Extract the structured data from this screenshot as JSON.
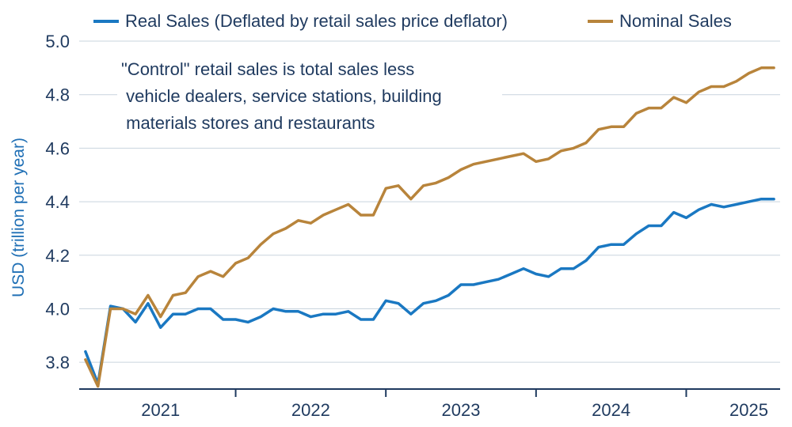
{
  "chart_data": {
    "type": "line",
    "xlabel": "",
    "ylabel": "USD (trillion per year)",
    "ylim": [
      3.7,
      5.0
    ],
    "yticks": [
      3.8,
      4.0,
      4.2,
      4.4,
      4.6,
      4.8,
      5.0
    ],
    "ytick_labels": [
      "3.8",
      "4.0",
      "4.2",
      "4.4",
      "4.6",
      "4.8",
      "5.0"
    ],
    "xlim": [
      "2020-08",
      "2025-04"
    ],
    "year_labels": [
      {
        "label": "2021",
        "center": "2021-03"
      },
      {
        "label": "2022",
        "center": "2022-03"
      },
      {
        "label": "2023",
        "center": "2023-03"
      },
      {
        "label": "2024",
        "center": "2024-03"
      },
      {
        "label": "2025",
        "center": "2025-02"
      }
    ],
    "year_ticks": [
      "2021-09",
      "2022-09",
      "2023-09",
      "2024-09"
    ],
    "annotation": [
      "\"Control\" retail sales is total sales less",
      " vehicle dealers, service stations, building",
      " materials stores and restaurants"
    ],
    "legend_position": "top",
    "grid": true,
    "x": [
      "2020-09",
      "2020-10",
      "2020-11",
      "2020-12",
      "2021-01",
      "2021-02",
      "2021-03",
      "2021-04",
      "2021-05",
      "2021-06",
      "2021-07",
      "2021-08",
      "2021-09",
      "2021-10",
      "2021-11",
      "2021-12",
      "2022-01",
      "2022-02",
      "2022-03",
      "2022-04",
      "2022-05",
      "2022-06",
      "2022-07",
      "2022-08",
      "2022-09",
      "2022-10",
      "2022-11",
      "2022-12",
      "2023-01",
      "2023-02",
      "2023-03",
      "2023-04",
      "2023-05",
      "2023-06",
      "2023-07",
      "2023-08",
      "2023-09",
      "2023-10",
      "2023-11",
      "2023-12",
      "2024-01",
      "2024-02",
      "2024-03",
      "2024-04",
      "2024-05",
      "2024-06",
      "2024-07",
      "2024-08",
      "2024-09",
      "2024-10",
      "2024-11",
      "2024-12",
      "2025-01",
      "2025-02",
      "2025-03",
      "2025-04"
    ],
    "series": [
      {
        "name": "Real Sales (Deflated by retail sales price deflator)",
        "color": "#1a78c2",
        "values": [
          3.84,
          3.72,
          4.01,
          4.0,
          3.95,
          4.02,
          3.93,
          3.98,
          3.98,
          4.0,
          4.0,
          3.96,
          3.96,
          3.95,
          3.97,
          4.0,
          3.99,
          3.99,
          3.97,
          3.98,
          3.98,
          3.99,
          3.96,
          3.96,
          4.03,
          4.02,
          3.98,
          4.02,
          4.03,
          4.05,
          4.09,
          4.09,
          4.1,
          4.11,
          4.13,
          4.15,
          4.13,
          4.12,
          4.15,
          4.15,
          4.18,
          4.23,
          4.24,
          4.24,
          4.28,
          4.31,
          4.31,
          4.36,
          4.34,
          4.37,
          4.39,
          4.38,
          4.39,
          4.4,
          4.41,
          4.41
        ]
      },
      {
        "name": "Nominal Sales",
        "color": "#b8843b",
        "values": [
          3.81,
          3.71,
          4.0,
          4.0,
          3.98,
          4.05,
          3.97,
          4.05,
          4.06,
          4.12,
          4.14,
          4.12,
          4.17,
          4.19,
          4.24,
          4.28,
          4.3,
          4.33,
          4.32,
          4.35,
          4.37,
          4.39,
          4.35,
          4.35,
          4.45,
          4.46,
          4.41,
          4.46,
          4.47,
          4.49,
          4.52,
          4.54,
          4.55,
          4.56,
          4.57,
          4.58,
          4.55,
          4.56,
          4.59,
          4.6,
          4.62,
          4.67,
          4.68,
          4.68,
          4.73,
          4.75,
          4.75,
          4.79,
          4.77,
          4.81,
          4.83,
          4.83,
          4.85,
          4.88,
          4.9,
          4.9
        ]
      }
    ]
  }
}
